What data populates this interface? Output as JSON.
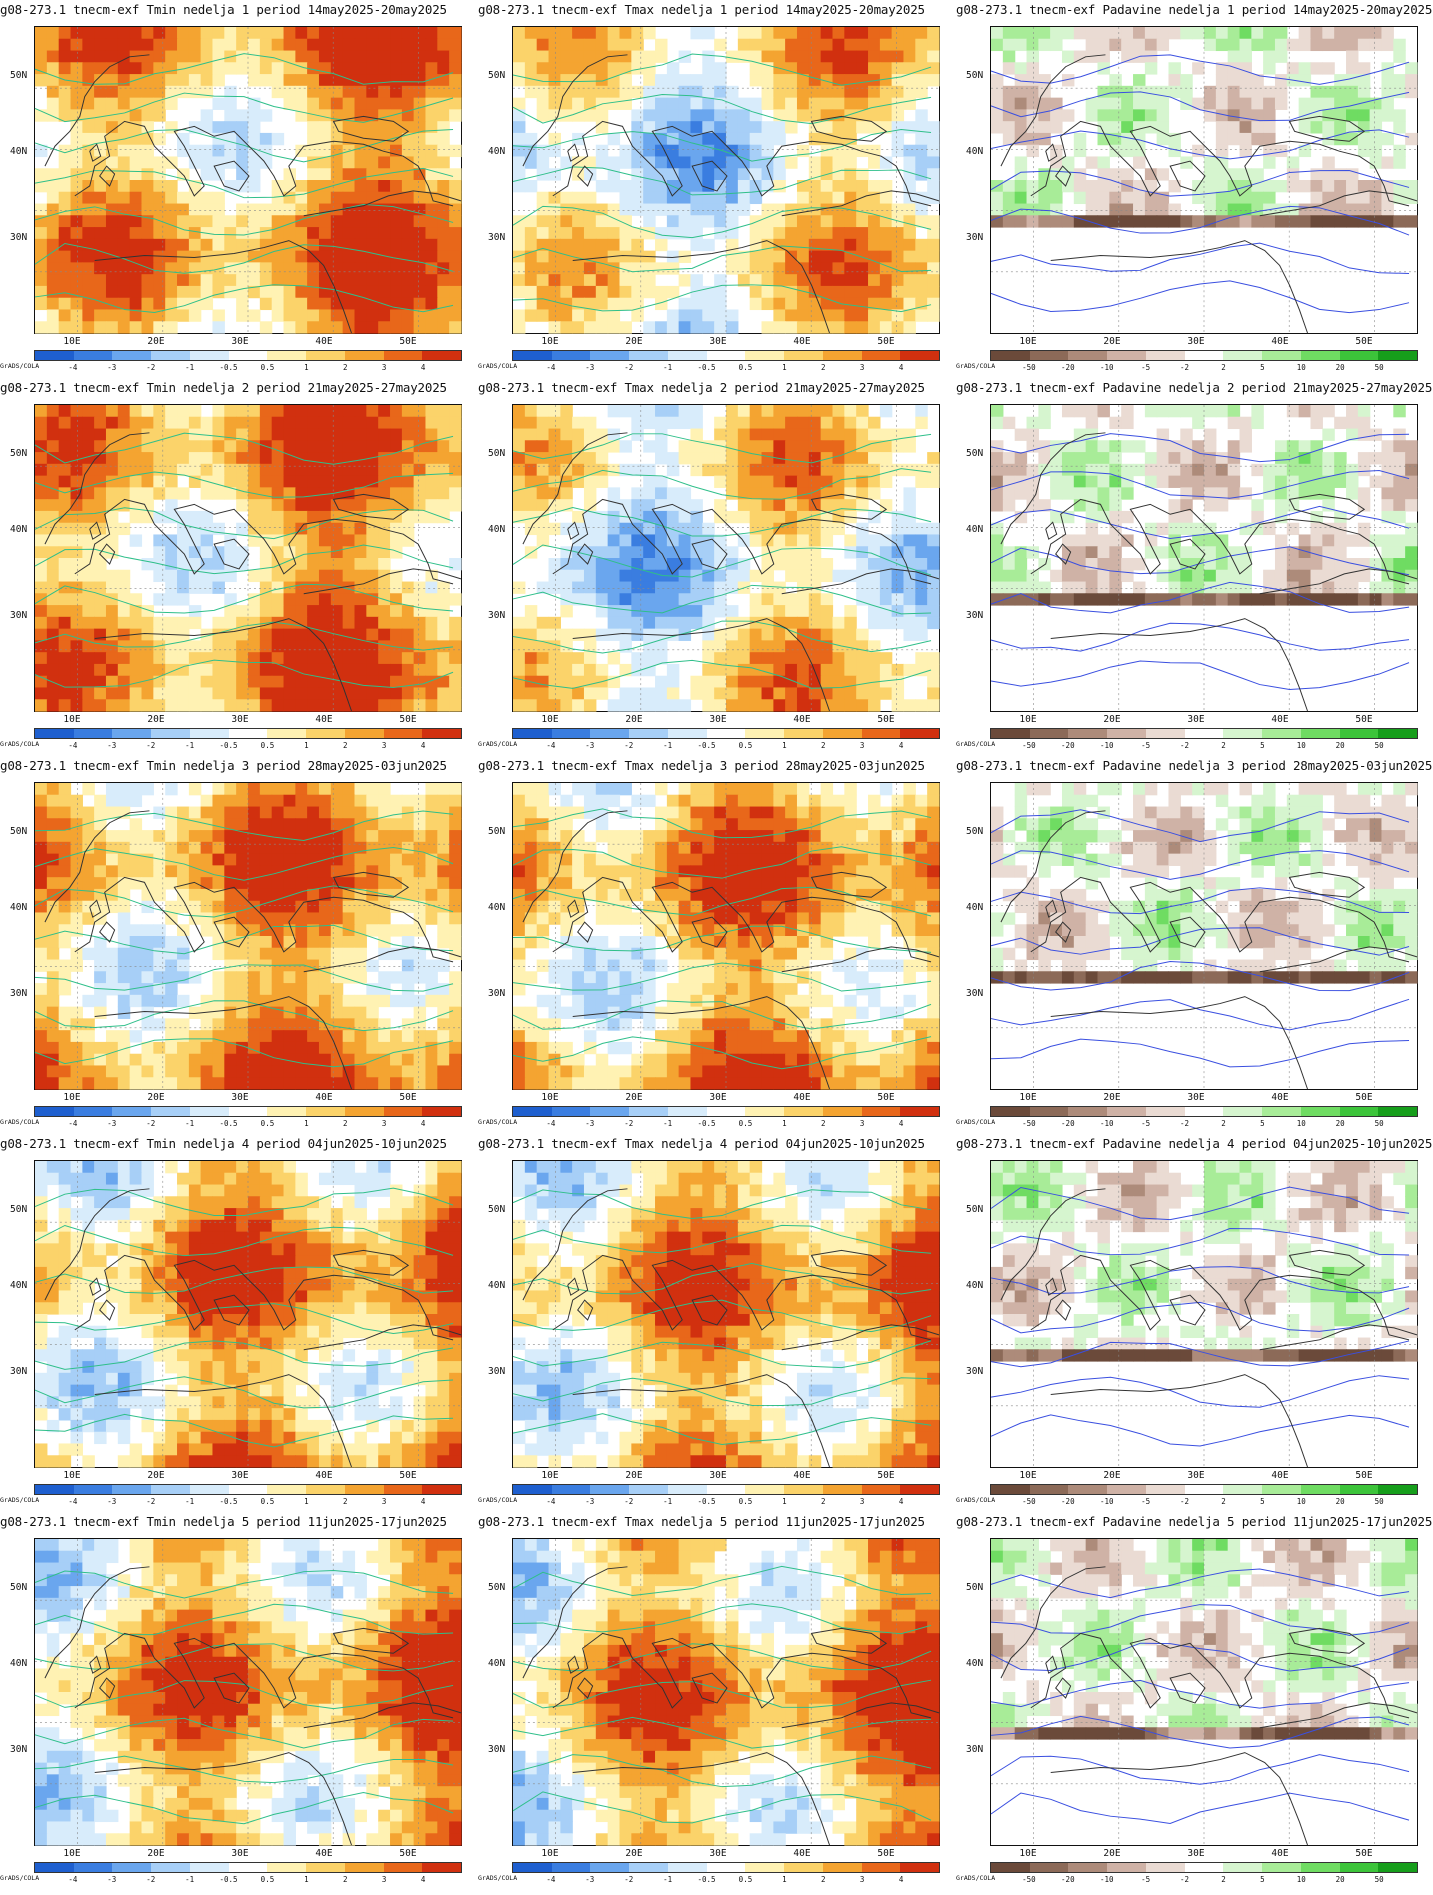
{
  "rows": [
    {
      "panels": [
        {
          "title": "g08-273.1 tnecm-exf Tmin nedelja 1 period 14may2025-20may2025",
          "scale": "temp",
          "pattern": 0
        },
        {
          "title": "g08-273.1 tnecm-exf Tmax nedelja 1 period 14may2025-20may2025",
          "scale": "temp",
          "pattern": 1
        },
        {
          "title": "g08-273.1 tnecm-exf Padavine nedelja 1 period 14may2025-20may2025",
          "scale": "precip",
          "pattern": 2
        }
      ]
    },
    {
      "panels": [
        {
          "title": "g08-273.1 tnecm-exf Tmin nedelja 2 period 21may2025-27may2025",
          "scale": "temp",
          "pattern": 3
        },
        {
          "title": "g08-273.1 tnecm-exf Tmax nedelja 2 period 21may2025-27may2025",
          "scale": "temp",
          "pattern": 4
        },
        {
          "title": "g08-273.1 tnecm-exf Padavine nedelja 2 period 21may2025-27may2025",
          "scale": "precip",
          "pattern": 5
        }
      ]
    },
    {
      "panels": [
        {
          "title": "g08-273.1 tnecm-exf Tmin nedelja 3 period 28may2025-03jun2025",
          "scale": "temp",
          "pattern": 6
        },
        {
          "title": "g08-273.1 tnecm-exf Tmax nedelja 3 period 28may2025-03jun2025",
          "scale": "temp",
          "pattern": 7
        },
        {
          "title": "g08-273.1 tnecm-exf Padavine nedelja 3 period 28may2025-03jun2025",
          "scale": "precip",
          "pattern": 8
        }
      ]
    },
    {
      "panels": [
        {
          "title": "g08-273.1 tnecm-exf Tmin nedelja 4 period 04jun2025-10jun2025",
          "scale": "temp",
          "pattern": 9
        },
        {
          "title": "g08-273.1 tnecm-exf Tmax nedelja 4 period 04jun2025-10jun2025",
          "scale": "temp",
          "pattern": 10
        },
        {
          "title": "g08-273.1 tnecm-exf Padavine nedelja 4 period 04jun2025-10jun2025",
          "scale": "precip",
          "pattern": 11
        }
      ]
    },
    {
      "panels": [
        {
          "title": "g08-273.1 tnecm-exf Tmin nedelja 5 period 11jun2025-17jun2025",
          "scale": "temp",
          "pattern": 12
        },
        {
          "title": "g08-273.1 tnecm-exf Tmax nedelja 5 period 11jun2025-17jun2025",
          "scale": "temp",
          "pattern": 13
        },
        {
          "title": "g08-273.1 tnecm-exf Padavine nedelja 5 period 11jun2025-17jun2025",
          "scale": "precip",
          "pattern": 14
        }
      ]
    }
  ],
  "axes": {
    "lat_labels": [
      "50N",
      "40N",
      "30N"
    ],
    "lon_labels": [
      "10E",
      "20E",
      "30E",
      "40E",
      "50E"
    ]
  },
  "credit": "GrADS/COLA",
  "scales": {
    "temp": {
      "ticks": [
        "-4",
        "-3",
        "-2",
        "-1",
        "-0.5",
        "0.5",
        "1",
        "2",
        "3",
        "4"
      ],
      "colors": [
        "#1e5fcf",
        "#3a7de0",
        "#6aa6ee",
        "#a7cff7",
        "#d8ecfb",
        "#ffffff",
        "#fff2b3",
        "#fbd36a",
        "#f4a431",
        "#e8671a",
        "#d1300f"
      ]
    },
    "precip": {
      "ticks": [
        "-50",
        "-20",
        "-10",
        "-5",
        "-2",
        "2",
        "5",
        "10",
        "20",
        "50"
      ],
      "colors": [
        "#6b4a3a",
        "#8c6a58",
        "#ad8b7a",
        "#cfb2a6",
        "#eadbd3",
        "#ffffff",
        "#d6f5cf",
        "#a8ec98",
        "#6fdc62",
        "#3cc43a",
        "#169e1b"
      ]
    }
  }
}
